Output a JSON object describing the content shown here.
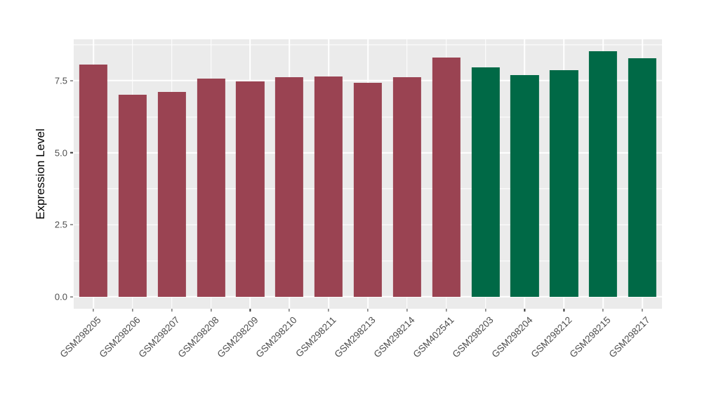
{
  "chart_data": {
    "type": "bar",
    "title": "",
    "xlabel": "",
    "ylabel": "Expression Level",
    "categories": [
      "GSM298205",
      "GSM298206",
      "GSM298207",
      "GSM298208",
      "GSM298209",
      "GSM298210",
      "GSM298211",
      "GSM298213",
      "GSM298214",
      "GSM402541",
      "GSM298203",
      "GSM298204",
      "GSM298212",
      "GSM298215",
      "GSM298217"
    ],
    "values": [
      8.05,
      7.02,
      7.1,
      7.57,
      7.48,
      7.61,
      7.64,
      7.43,
      7.62,
      8.31,
      7.97,
      7.7,
      7.86,
      8.52,
      8.27
    ],
    "groups": [
      "group1",
      "group1",
      "group1",
      "group1",
      "group1",
      "group1",
      "group1",
      "group1",
      "group1",
      "group1",
      "group2",
      "group2",
      "group2",
      "group2",
      "group2"
    ],
    "group_colors": {
      "group1": "#9A4352",
      "group2": "#006946"
    },
    "ylim": [
      -0.414,
      8.936
    ],
    "yticks": [
      {
        "label": "0.0",
        "value": 0.0
      },
      {
        "label": "2.5",
        "value": 2.5
      },
      {
        "label": "5.0",
        "value": 5.0
      },
      {
        "label": "7.5",
        "value": 7.5
      }
    ],
    "minor_yticks": [
      1.25,
      3.75,
      6.25,
      8.75
    ],
    "grid": true,
    "legend": "none",
    "bar_rel_width": 0.72,
    "styles": {
      "panel_bg": "#EBEBEB",
      "grid_color": "#FFFFFF",
      "tick_label_color": "#4D4D4D",
      "axis_title_color": "#000000",
      "tick_mark_color": "#333333"
    }
  }
}
